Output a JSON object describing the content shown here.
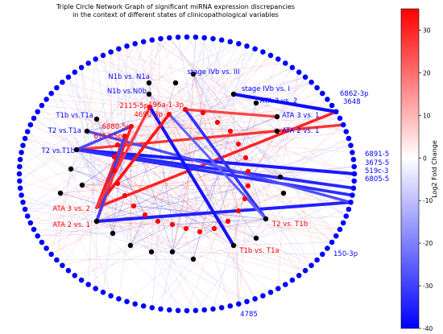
{
  "chart_data": {
    "type": "network",
    "title": "Triple Circle Network Graph of significant miRNA expression discrepancies\nin the context of different states of clinicopathological variables",
    "colorbar": {
      "label": "Log2 Fold Change",
      "ticks": [
        30,
        20,
        10,
        0,
        -10,
        -20,
        -30,
        -40
      ],
      "range": [
        -40,
        35
      ],
      "colormap": [
        "#0000ff",
        "#ffffff",
        "#ff0000"
      ]
    },
    "colors": {
      "mirna_outer": "#0000ff",
      "comparison_nodes": "#000000",
      "mirna_inner": "#ff0000"
    },
    "mirna_outer": [
      "6862-3p",
      "3648",
      "6891-5",
      "3675-5",
      "519c-3",
      "6805-5",
      "150-3p",
      "4785"
    ],
    "comparisons": [
      "stage IVb vs. III",
      "N1b vs. N1a",
      "N1b vs.N0b",
      "stage IVb vs. I",
      "ATA 3 vs. 2",
      "T1b vs.T1a",
      "ATA 3 vs. 1",
      "T2 vs.T1a",
      "ATA 2 vs. 1",
      "T2 vs.T1b",
      "T2 vs. T1b",
      "T1b vs. T1a",
      "ATA 3 vs. 2",
      "ATA 2 vs. 1"
    ],
    "mirna_inner": [
      "2115-5p",
      "196a-1-3p",
      "4690-3p",
      "6880-5p",
      "6753-5p"
    ],
    "edges": [
      {
        "from": "6862-3p",
        "to": "ATA 3 vs. 2",
        "log2fc": 30
      },
      {
        "from": "3648",
        "to": "T2 vs.T1b",
        "log2fc": 28
      },
      {
        "from": "6862-3p",
        "to": "stage IVb vs. I",
        "log2fc": -38
      },
      {
        "from": "6891-5",
        "to": "T2 vs.T1b",
        "log2fc": -36
      },
      {
        "from": "3675-5",
        "to": "T2 vs.T1b",
        "log2fc": -34
      },
      {
        "from": "519c-3",
        "to": "T2 vs.T1b",
        "log2fc": -33
      },
      {
        "from": "6805-5",
        "to": "ATA 2 vs. 1",
        "log2fc": -35
      },
      {
        "from": "6805-5",
        "to": "T2 vs.T1a",
        "log2fc": -28
      },
      {
        "from": "2115-5p",
        "to": "T1b vs. T1a",
        "log2fc": -37
      },
      {
        "from": "196a-1-3p",
        "to": "T2 vs. T1b",
        "log2fc": -32
      },
      {
        "from": "4690-3p",
        "to": "ATA 3 vs. 2",
        "log2fc": 32
      },
      {
        "from": "6880-5p",
        "to": "ATA 2 vs. 1",
        "log2fc": 30
      },
      {
        "from": "6753-5p",
        "to": "ATA 3 vs. 2",
        "log2fc": 31
      },
      {
        "from": "6753-5p",
        "to": "ATA 2 vs. 1",
        "log2fc": -30
      },
      {
        "from": "6880-5p",
        "to": "T2 vs.T1b",
        "log2fc": -29
      },
      {
        "from": "2115-5p",
        "to": "ATA 3 vs. 2",
        "log2fc": 27
      },
      {
        "from": "196a-1-3p",
        "to": "ATA 3 vs. 1",
        "log2fc": 26
      },
      {
        "from": "4690-3p",
        "to": "T2 vs. T1b",
        "log2fc": -25
      }
    ]
  }
}
